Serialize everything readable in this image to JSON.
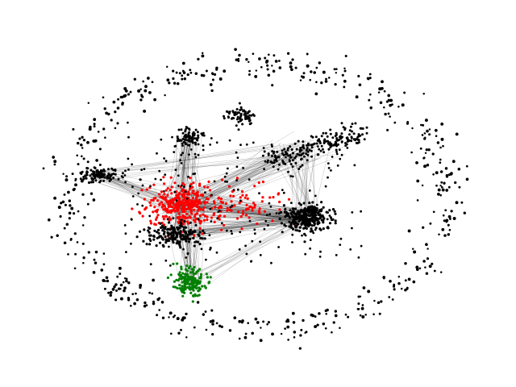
{
  "graph": {
    "background": "#ffffff",
    "node_colors": {
      "default": "#000000",
      "highlight_red": "#ff0000",
      "highlight_green": "#008000"
    },
    "edge_color": "#000000",
    "clusters": [
      {
        "id": "center-red",
        "color": "highlight_red"
      },
      {
        "id": "bottom-green",
        "color": "highlight_green"
      },
      {
        "id": "right-dense",
        "color": "default"
      },
      {
        "id": "upper-right-fan",
        "color": "default"
      },
      {
        "id": "left-cluster",
        "color": "default"
      },
      {
        "id": "top-small",
        "color": "default"
      },
      {
        "id": "top-left-cluster",
        "color": "default"
      },
      {
        "id": "lower-left-cluster",
        "color": "default"
      }
    ],
    "peripheral_ring": true
  }
}
